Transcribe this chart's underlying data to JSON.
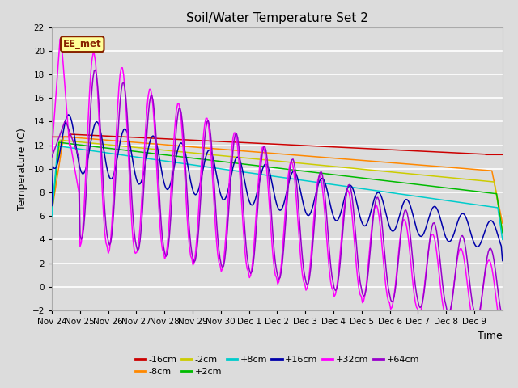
{
  "title": "Soil/Water Temperature Set 2",
  "xlabel": "Time",
  "ylabel": "Temperature (C)",
  "ylim": [
    -2,
    22
  ],
  "yticks": [
    -2,
    0,
    2,
    4,
    6,
    8,
    10,
    12,
    14,
    16,
    18,
    20,
    22
  ],
  "x_labels": [
    "Nov 24",
    "Nov 25",
    "Nov 26",
    "Nov 27",
    "Nov 28",
    "Nov 29",
    "Nov 30",
    "Dec 1",
    "Dec 2",
    "Dec 3",
    "Dec 4",
    "Dec 5",
    "Dec 6",
    "Dec 7",
    "Dec 8",
    "Dec 9"
  ],
  "background_color": "#dcdcdc",
  "grid_color": "#ffffff",
  "annotation_text": "EE_met",
  "annotation_bg": "#ffff99",
  "annotation_border": "#882200",
  "series": [
    {
      "label": "-16cm",
      "color": "#cc0000"
    },
    {
      "label": "-8cm",
      "color": "#ff8800"
    },
    {
      "label": "-2cm",
      "color": "#cccc00"
    },
    {
      "label": "+2cm",
      "color": "#00bb00"
    },
    {
      "label": "+8cm",
      "color": "#00cccc"
    },
    {
      "label": "+16cm",
      "color": "#0000aa"
    },
    {
      "label": "+32cm",
      "color": "#ff00ff"
    },
    {
      "label": "+64cm",
      "color": "#9900cc"
    }
  ]
}
